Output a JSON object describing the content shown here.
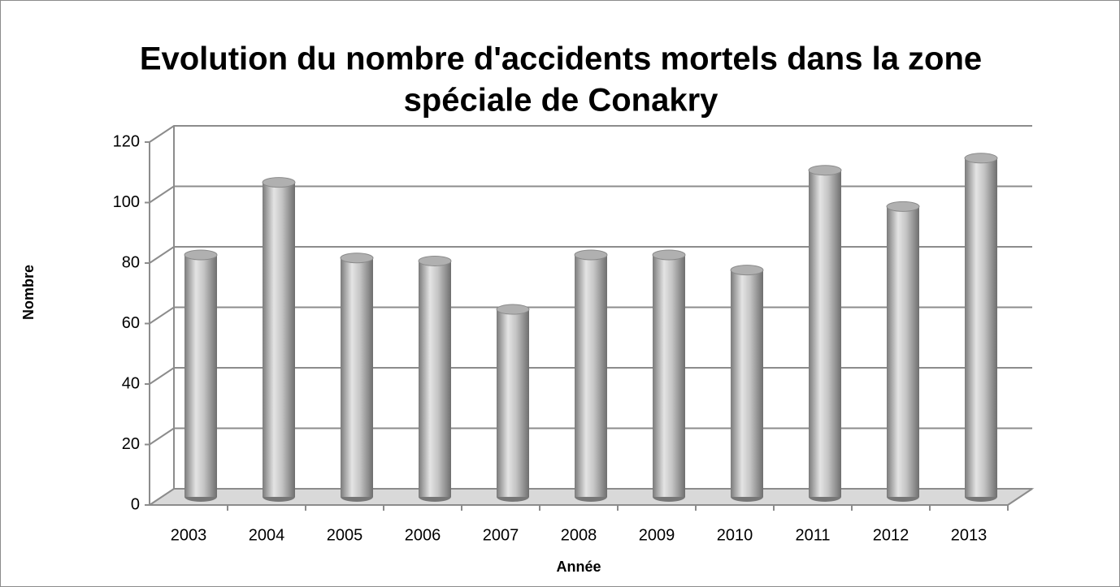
{
  "chart_data": {
    "type": "bar3d",
    "title": [
      "Evolution du nombre d'accidents mortels dans la zone",
      "spéciale  de Conakry"
    ],
    "y_label": "Nombre",
    "x_label": "Année",
    "categories": [
      "2003",
      "2004",
      "2005",
      "2006",
      "2007",
      "2008",
      "2009",
      "2010",
      "2011",
      "2012",
      "2013"
    ],
    "values": [
      80,
      104,
      79,
      78,
      62,
      80,
      80,
      75,
      108,
      96,
      112
    ],
    "color": "#b0b0b0",
    "ylim": [
      0,
      120
    ],
    "yticks": [
      0,
      20,
      40,
      60,
      80,
      100,
      120
    ],
    "grid": true
  }
}
